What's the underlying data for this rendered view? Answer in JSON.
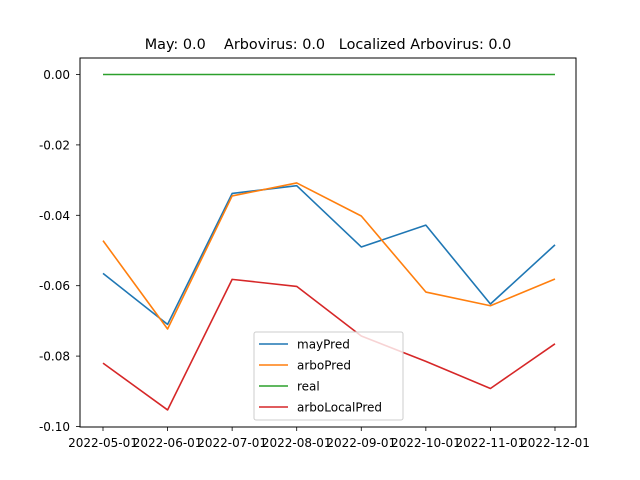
{
  "chart_data": {
    "type": "line",
    "title": "May: 0.0    Arbovirus: 0.0   Localized Arbovirus: 0.0",
    "xlabel": "",
    "ylabel": "",
    "x": [
      "2022-05-01",
      "2022-06-01",
      "2022-07-01",
      "2022-08-01",
      "2022-09-01",
      "2022-10-01",
      "2022-11-01",
      "2022-12-01"
    ],
    "ylim": [
      -0.1,
      0.004
    ],
    "yticks": [
      "0.00",
      "-0.02",
      "-0.04",
      "-0.06",
      "-0.08",
      "-0.10"
    ],
    "ytick_values": [
      0.0,
      -0.02,
      -0.04,
      -0.06,
      -0.08,
      -0.1
    ],
    "grid": false,
    "legend_position": "lower center",
    "series": [
      {
        "name": "mayPred",
        "color": "#1f77b4",
        "values": [
          -0.0565,
          -0.071,
          -0.0338,
          -0.0316,
          -0.049,
          -0.0428,
          -0.0652,
          -0.0484
        ]
      },
      {
        "name": "arboPred",
        "color": "#ff7f0e",
        "values": [
          -0.0472,
          -0.0723,
          -0.0345,
          -0.0308,
          -0.0402,
          -0.0618,
          -0.0657,
          -0.0581
        ]
      },
      {
        "name": "real",
        "color": "#2ca02c",
        "values": [
          0.0,
          0.0,
          0.0,
          0.0,
          0.0,
          0.0,
          0.0,
          0.0
        ]
      },
      {
        "name": "arboLocalPred",
        "color": "#d62728",
        "values": [
          -0.082,
          -0.0953,
          -0.0582,
          -0.0602,
          -0.0743,
          -0.0815,
          -0.0892,
          -0.0765
        ]
      }
    ]
  }
}
